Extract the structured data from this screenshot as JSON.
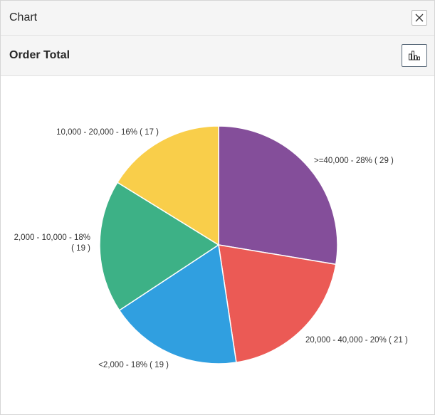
{
  "dialog": {
    "title": "Chart"
  },
  "header": {
    "title": "Order Total"
  },
  "icons": {
    "close": "close-icon",
    "chart_type": "bar-chart-icon"
  },
  "chart_data": {
    "type": "pie",
    "title": "",
    "slices": [
      {
        "label": ">=40,000",
        "percent": "28%",
        "count": 29,
        "color": "#844e9a",
        "label_lines": [
          ">=40,000 - 28% ( 29 )"
        ]
      },
      {
        "label": "20,000 - 40,000",
        "percent": "20%",
        "count": 21,
        "color": "#eb5a55",
        "label_lines": [
          "20,000 - 40,000 - 20% ( 21 )"
        ]
      },
      {
        "label": "<2,000",
        "percent": "18%",
        "count": 19,
        "color": "#309fe0",
        "label_lines": [
          "<2,000 - 18% ( 19 )"
        ]
      },
      {
        "label": "2,000 - 10,000",
        "percent": "18%",
        "count": 19,
        "color": "#3db186",
        "label_lines": [
          "2,000 - 10,000 - 18%",
          "( 19 )"
        ]
      },
      {
        "label": "10,000 - 20,000",
        "percent": "16%",
        "count": 17,
        "color": "#f9ce4a",
        "label_lines": [
          "10,000 - 20,000 - 16% ( 17 )"
        ]
      }
    ],
    "legend": "none"
  }
}
